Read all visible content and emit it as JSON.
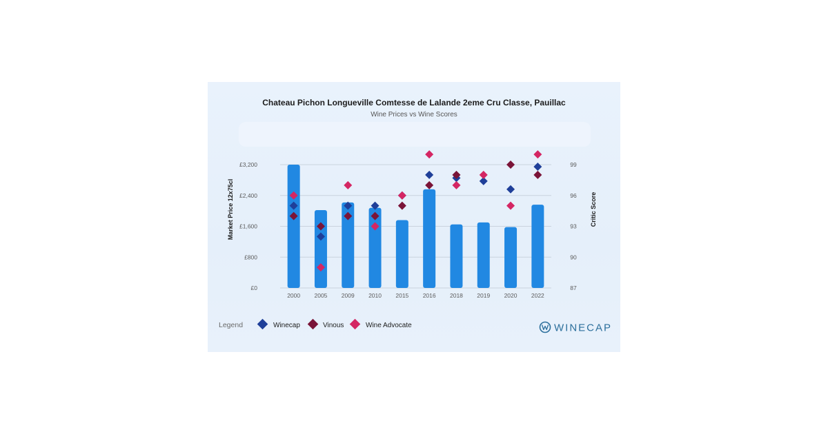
{
  "chart_data": {
    "type": "bar",
    "title": "Chateau Pichon Longueville Comtesse de Lalande 2eme Cru Classe, Pauillac",
    "subtitle": "Wine Prices vs Wine Scores",
    "categories": [
      "2000",
      "2005",
      "2009",
      "2010",
      "2015",
      "2016",
      "2018",
      "2019",
      "2020",
      "2022"
    ],
    "ylabel": "Market Price 12x75cl",
    "ylabel_right": "Critic Score",
    "ylim": [
      0,
      3200
    ],
    "ylim_right": [
      87,
      99
    ],
    "y_ticks": [
      "£0",
      "£800",
      "£1,600",
      "£2,400",
      "£3,200"
    ],
    "y_tick_values": [
      0,
      800,
      1600,
      2400,
      3200
    ],
    "y_ticks_right": [
      "87",
      "90",
      "93",
      "96",
      "99"
    ],
    "y_tick_values_right": [
      87,
      90,
      93,
      96,
      99
    ],
    "bar_series": {
      "name": "Market Price 12x75cl",
      "color": "#2188e2",
      "values": [
        3200,
        2020,
        2220,
        2080,
        1760,
        2560,
        1650,
        1700,
        1580,
        2160
      ]
    },
    "score_series": [
      {
        "name": "Winecap",
        "color": "#1f3f99",
        "values": [
          95,
          92,
          95,
          95,
          96,
          98,
          97.7,
          97.4,
          96.6,
          98.8
        ]
      },
      {
        "name": "Vinous",
        "color": "#7a1438",
        "values": [
          94,
          93,
          94,
          94,
          95,
          97,
          98,
          null,
          99,
          98
        ]
      },
      {
        "name": "Wine Advocate",
        "color": "#d42663",
        "values": [
          96,
          89,
          97,
          93,
          96,
          100,
          97,
          98,
          95,
          100
        ]
      }
    ],
    "legend_title": "Legend",
    "legend_position": "bottom-left",
    "grid": true
  },
  "brand": {
    "name": "WINECAP",
    "color": "#2c6f9c"
  }
}
